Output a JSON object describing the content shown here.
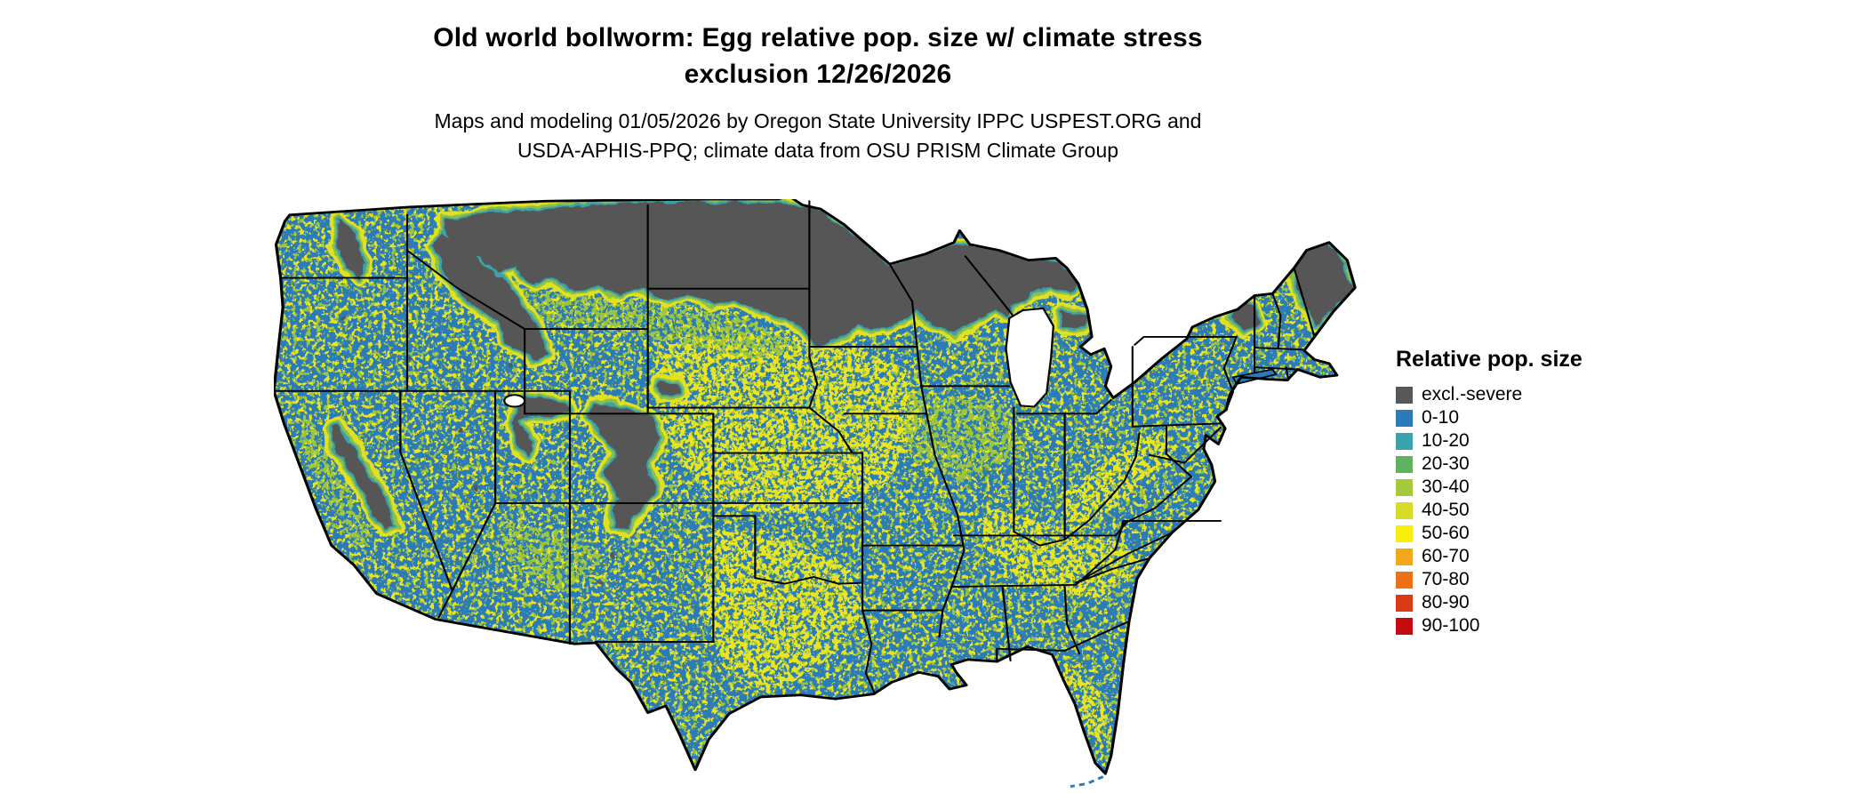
{
  "header": {
    "title_line1": "Old world bollworm: Egg relative pop. size w/ climate stress",
    "title_line2": "exclusion 12/26/2026",
    "subtitle_line1": "Maps and modeling 01/05/2026 by Oregon State University IPPC USPEST.ORG and",
    "subtitle_line2": "USDA-APHIS-PPQ; climate data from OSU PRISM Climate Group"
  },
  "legend": {
    "title": "Relative pop. size",
    "items": [
      {
        "label": "excl.-severe",
        "color": "#575757"
      },
      {
        "label": "0-10",
        "color": "#2b7bb9"
      },
      {
        "label": "10-20",
        "color": "#3aa2ab"
      },
      {
        "label": "20-30",
        "color": "#5fb35e"
      },
      {
        "label": "30-40",
        "color": "#a4c93b"
      },
      {
        "label": "40-50",
        "color": "#d8dc26"
      },
      {
        "label": "50-60",
        "color": "#f7ef0a"
      },
      {
        "label": "60-70",
        "color": "#f3a81c"
      },
      {
        "label": "70-80",
        "color": "#eb7114"
      },
      {
        "label": "80-90",
        "color": "#da3b14"
      },
      {
        "label": "90-100",
        "color": "#c40a10"
      }
    ]
  },
  "map": {
    "colors": {
      "water": "#ffffff",
      "base": "#2b7bb9",
      "excl": "#575757",
      "fringe_teal": "#3aa2ab",
      "fringe_green": "#8cc04a",
      "fringe_yellow": "#e2e024",
      "speckle_green": "#9dc63c",
      "speckle_yellow": "#eae51e",
      "border": "#000000"
    }
  }
}
